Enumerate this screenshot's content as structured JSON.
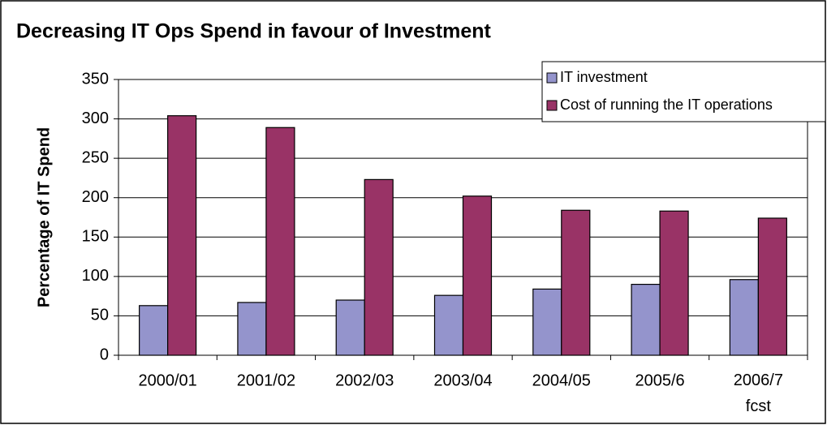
{
  "chart_data": {
    "type": "bar",
    "title": "Decreasing IT Ops Spend in favour of Investment",
    "y_label": "Percentage of IT Spend",
    "categories": [
      "2000/01",
      "2001/02",
      "2002/03",
      "2003/04",
      "2004/05",
      "2005/6",
      "2006/7 fcst"
    ],
    "series": [
      {
        "name": "IT investment",
        "color": "#9494cc",
        "values": [
          63,
          67,
          70,
          76,
          84,
          90,
          96
        ]
      },
      {
        "name": "Cost of running the IT operations",
        "color": "#993366",
        "values": [
          304,
          289,
          223,
          202,
          184,
          183,
          174
        ]
      }
    ],
    "ylim": [
      0,
      350
    ],
    "yticks": [
      0,
      50,
      100,
      150,
      200,
      250,
      300,
      350
    ],
    "grid": true,
    "legend": "top-right"
  }
}
